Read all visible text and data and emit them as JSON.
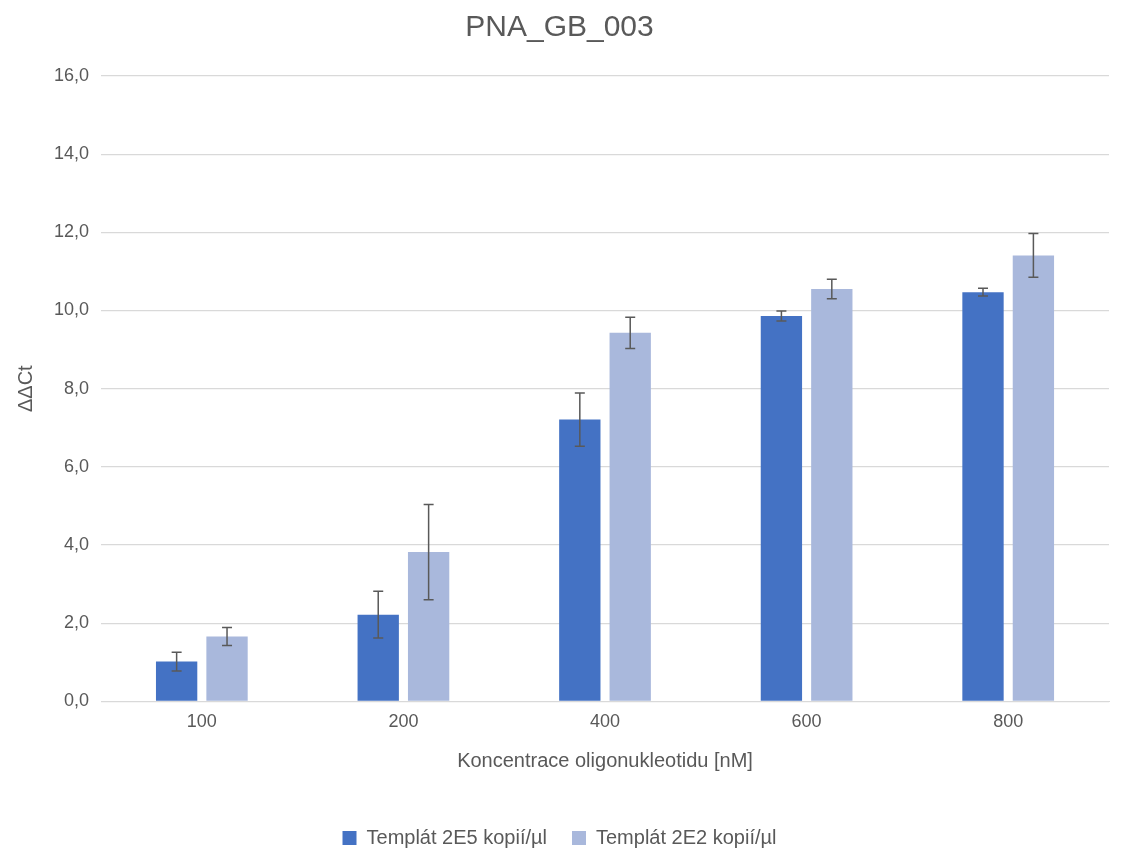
{
  "chart_data": {
    "type": "bar",
    "title": "PNA_GB_003",
    "xlabel": "Koncentrace oligonukleotidu [nM]",
    "ylabel": "ΔΔCt",
    "categories": [
      "100",
      "200",
      "400",
      "600",
      "800"
    ],
    "series": [
      {
        "name": "Templát 2E5 kopií/µl",
        "color": "#4472c4",
        "values": [
          1.02,
          2.22,
          7.21,
          9.86,
          10.47
        ],
        "errors": [
          0.24,
          0.6,
          0.68,
          0.13,
          0.1
        ]
      },
      {
        "name": "Templát 2E2 kopií/µl",
        "color": "#a9b8dc",
        "values": [
          1.66,
          3.82,
          9.43,
          10.55,
          11.41
        ],
        "errors": [
          0.23,
          1.22,
          0.4,
          0.25,
          0.56
        ]
      }
    ],
    "ylim": [
      0,
      16
    ],
    "yticks": [
      {
        "value": 0,
        "label": "0,0"
      },
      {
        "value": 2,
        "label": "2,0"
      },
      {
        "value": 4,
        "label": "4,0"
      },
      {
        "value": 6,
        "label": "6,0"
      },
      {
        "value": 8,
        "label": "8,0"
      },
      {
        "value": 10,
        "label": "10,0"
      },
      {
        "value": 12,
        "label": "12,0"
      },
      {
        "value": 14,
        "label": "14,0"
      },
      {
        "value": 16,
        "label": "16,0"
      }
    ],
    "grid": "y",
    "legend": "bottom"
  }
}
